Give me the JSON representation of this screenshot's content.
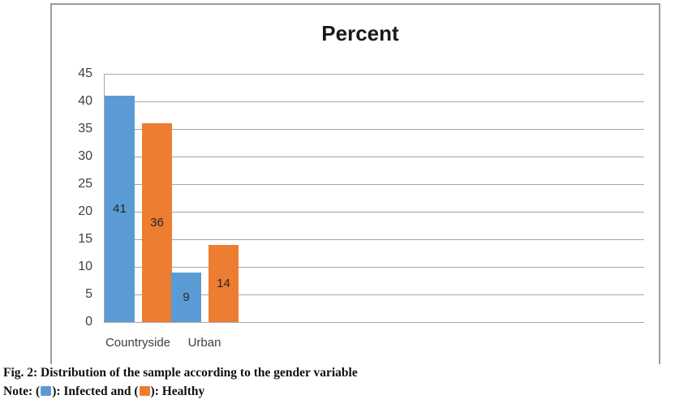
{
  "figure": {
    "caption": "Fig. 2: Distribution of the sample according to the gender variable",
    "note_prefix": "Note: (",
    "note_mid": "): Infected and (",
    "note_suffix": "): Healthy"
  },
  "chart_data": {
    "type": "bar",
    "title": "Percent",
    "categories": [
      "Countryside",
      "Urban"
    ],
    "series": [
      {
        "name": "Infected",
        "color": "#5B9BD5",
        "values": [
          41,
          9
        ]
      },
      {
        "name": "Healthy",
        "color": "#ED7D31",
        "values": [
          36,
          14
        ]
      }
    ],
    "ylabel": "",
    "xlabel": "",
    "ylim": [
      0,
      45
    ],
    "yticks": [
      0,
      5,
      10,
      15,
      20,
      25,
      30,
      35,
      40,
      45
    ],
    "grid": true,
    "legend": "none",
    "data_labels": "center",
    "colors": {
      "grid": "#A6A6A6",
      "tick_label": "#3F3F3F",
      "bar_label": "#262626",
      "figure_border": "#9D9D9D"
    }
  }
}
